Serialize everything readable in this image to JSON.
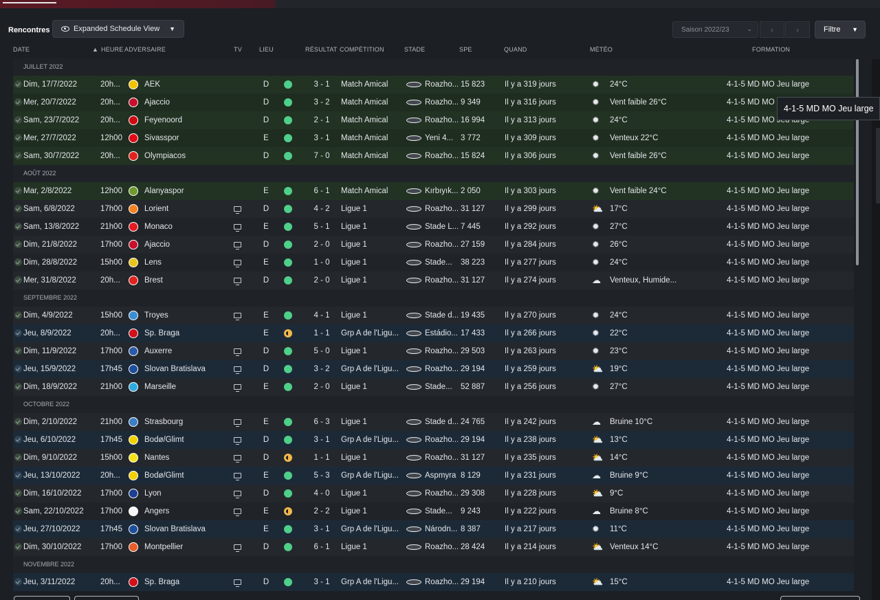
{
  "page_title": "Rencontres",
  "view_button": "Expanded Schedule View",
  "season": "Saison 2022/23",
  "filter_label": "Filtre",
  "tooltip": "4-1-5 MD MO Jeu large",
  "headers": {
    "date": "DATE",
    "heure": "HEURE",
    "adversaire": "ADVERSAIRE",
    "tv": "TV",
    "lieu": "LIEU",
    "resultat": "RÉSULTAT",
    "competition": "COMPÉTITION",
    "stade": "STADE",
    "spe": "SPE",
    "quand": "QUAND",
    "meteo": "MÉTÉO",
    "formation": "FORMATION"
  },
  "sections": [
    {
      "label": "JUILLET 2022",
      "rows": [
        {
          "date": "Dim, 17/7/2022",
          "time": "20h...",
          "badge": "#f2c200",
          "opp": "AEK",
          "tv": false,
          "lieu": "D",
          "outcome": "win",
          "res": "3 - 1",
          "comp": "Match Amical",
          "stade": "Roazho...",
          "spe": "15 823",
          "when": "Il y a 319 jours",
          "wicon": "sun",
          "weather": "24°C",
          "form": "4-1-5 MD MO Jeu large",
          "style": "green"
        },
        {
          "date": "Mer, 20/7/2022",
          "time": "20h...",
          "badge": "#c8102e",
          "opp": "Ajaccio",
          "tv": false,
          "lieu": "D",
          "outcome": "win",
          "res": "3 - 2",
          "comp": "Match Amical",
          "stade": "Roazho...",
          "spe": "9 349",
          "when": "Il y a 316 jours",
          "wicon": "sun",
          "weather": "Vent faible 26°C",
          "form": "4-1-5 MD MO Jeu large",
          "style": "green"
        },
        {
          "date": "Sam, 23/7/2022",
          "time": "20h...",
          "badge": "#d10a11",
          "opp": "Feyenoord",
          "tv": false,
          "lieu": "D",
          "outcome": "win",
          "res": "2 - 1",
          "comp": "Match Amical",
          "stade": "Roazho...",
          "spe": "16 994",
          "when": "Il y a 313 jours",
          "wicon": "sun",
          "weather": "24°C",
          "form": "4-1-5 MD MO Jeu large",
          "style": "green"
        },
        {
          "date": "Mer, 27/7/2022",
          "time": "12h00",
          "badge": "#e30a17",
          "opp": "Sivasspor",
          "tv": false,
          "lieu": "E",
          "outcome": "win",
          "res": "3 - 1",
          "comp": "Match Amical",
          "stade": "Yeni 4...",
          "spe": "3 772",
          "when": "Il y a 309 jours",
          "wicon": "sun",
          "weather": "Venteux 22°C",
          "form": "4-1-5 MD MO Jeu large",
          "style": "green"
        },
        {
          "date": "Sam, 30/7/2022",
          "time": "20h...",
          "badge": "#e2211c",
          "opp": "Olympiacos",
          "tv": false,
          "lieu": "D",
          "outcome": "win",
          "res": "7 - 0",
          "comp": "Match Amical",
          "stade": "Roazho...",
          "spe": "15 824",
          "when": "Il y a 306 jours",
          "wicon": "sun",
          "weather": "Vent faible 26°C",
          "form": "4-1-5 MD MO Jeu large",
          "style": "green"
        }
      ]
    },
    {
      "label": "AOÛT 2022",
      "rows": [
        {
          "date": "Mar, 2/8/2022",
          "time": "12h00",
          "badge": "#6f9a2c",
          "opp": "Alanyaspor",
          "tv": false,
          "lieu": "E",
          "outcome": "win",
          "res": "6 - 1",
          "comp": "Match Amical",
          "stade": "Kırbıyık...",
          "spe": "2 050",
          "when": "Il y a 303 jours",
          "wicon": "sun",
          "weather": "Vent faible 24°C",
          "form": "4-1-5 MD MO Jeu large",
          "style": "green"
        },
        {
          "date": "Sam, 6/8/2022",
          "time": "17h00",
          "badge": "#f58220",
          "opp": "Lorient",
          "tv": true,
          "lieu": "D",
          "outcome": "win",
          "res": "4 - 2",
          "comp": "Ligue 1",
          "stade": "Roazho...",
          "spe": "31 127",
          "when": "Il y a 299 jours",
          "wicon": "cloudsun",
          "weather": "17°C",
          "form": "4-1-5 MD MO Jeu large",
          "style": "dark"
        },
        {
          "date": "Sam, 13/8/2022",
          "time": "21h00",
          "badge": "#e51b22",
          "opp": "Monaco",
          "tv": true,
          "lieu": "E",
          "outcome": "win",
          "res": "5 - 1",
          "comp": "Ligue 1",
          "stade": "Stade L...",
          "spe": "7 445",
          "when": "Il y a 292 jours",
          "wicon": "sun",
          "weather": "27°C",
          "form": "4-1-5 MD MO Jeu large",
          "style": "dark alt"
        },
        {
          "date": "Dim, 21/8/2022",
          "time": "17h00",
          "badge": "#c8102e",
          "opp": "Ajaccio",
          "tv": true,
          "lieu": "D",
          "outcome": "win",
          "res": "2 - 0",
          "comp": "Ligue 1",
          "stade": "Roazho...",
          "spe": "27 159",
          "when": "Il y a 284 jours",
          "wicon": "sun",
          "weather": "26°C",
          "form": "4-1-5 MD MO Jeu large",
          "style": "dark"
        },
        {
          "date": "Dim, 28/8/2022",
          "time": "15h00",
          "badge": "#e8c31b",
          "opp": "Lens",
          "tv": true,
          "lieu": "E",
          "outcome": "win",
          "res": "1 - 0",
          "comp": "Ligue 1",
          "stade": "Stade...",
          "spe": "38 223",
          "when": "Il y a 277 jours",
          "wicon": "sun",
          "weather": "24°C",
          "form": "4-1-5 MD MO Jeu large",
          "style": "dark alt"
        },
        {
          "date": "Mer, 31/8/2022",
          "time": "20h...",
          "badge": "#e0241e",
          "opp": "Brest",
          "tv": true,
          "lieu": "D",
          "outcome": "win",
          "res": "2 - 0",
          "comp": "Ligue 1",
          "stade": "Roazho...",
          "spe": "31 127",
          "when": "Il y a 274 jours",
          "wicon": "cloud",
          "weather": "Venteux, Humide...",
          "form": "4-1-5 MD MO Jeu large",
          "style": "dark"
        }
      ]
    },
    {
      "label": "SEPTEMBRE 2022",
      "rows": [
        {
          "date": "Dim, 4/9/2022",
          "time": "15h00",
          "badge": "#3a8fd4",
          "opp": "Troyes",
          "tv": true,
          "lieu": "E",
          "outcome": "win",
          "res": "4 - 1",
          "comp": "Ligue 1",
          "stade": "Stade d...",
          "spe": "19 435",
          "when": "Il y a 270 jours",
          "wicon": "sun",
          "weather": "24°C",
          "form": "4-1-5 MD MO Jeu large",
          "style": "dark"
        },
        {
          "date": "Jeu, 8/9/2022",
          "time": "20h...",
          "badge": "#d1101a",
          "opp": "Sp. Braga",
          "tv": false,
          "lieu": "E",
          "outcome": "draw",
          "res": "1 - 1",
          "comp": "Grp A de l'Ligu...",
          "stade": "Estádio...",
          "spe": "17 433",
          "when": "Il y a 266 jours",
          "wicon": "sun",
          "weather": "22°C",
          "form": "4-1-5 MD MO Jeu large",
          "style": "blue"
        },
        {
          "date": "Dim, 11/9/2022",
          "time": "17h00",
          "badge": "#2a5cab",
          "opp": "Auxerre",
          "tv": true,
          "lieu": "D",
          "outcome": "win",
          "res": "5 - 0",
          "comp": "Ligue 1",
          "stade": "Roazho...",
          "spe": "29 503",
          "when": "Il y a 263 jours",
          "wicon": "sun",
          "weather": "23°C",
          "form": "4-1-5 MD MO Jeu large",
          "style": "dark"
        },
        {
          "date": "Jeu, 15/9/2022",
          "time": "17h45",
          "badge": "#1d4f9c",
          "opp": "Slovan Bratislava",
          "tv": true,
          "lieu": "D",
          "outcome": "win",
          "res": "3 - 2",
          "comp": "Grp A de l'Ligu...",
          "stade": "Roazho...",
          "spe": "29 194",
          "when": "Il y a 259 jours",
          "wicon": "cloudsun",
          "weather": "19°C",
          "form": "4-1-5 MD MO Jeu large",
          "style": "blue"
        },
        {
          "date": "Dim, 18/9/2022",
          "time": "21h00",
          "badge": "#2fa9e0",
          "opp": "Marseille",
          "tv": true,
          "lieu": "E",
          "outcome": "win",
          "res": "2 - 0",
          "comp": "Ligue 1",
          "stade": "Stade...",
          "spe": "52 887",
          "when": "Il y a 256 jours",
          "wicon": "sun",
          "weather": "27°C",
          "form": "4-1-5 MD MO Jeu large",
          "style": "dark"
        }
      ]
    },
    {
      "label": "OCTOBRE 2022",
      "rows": [
        {
          "date": "Dim, 2/10/2022",
          "time": "21h00",
          "badge": "#3b7fc4",
          "opp": "Strasbourg",
          "tv": true,
          "lieu": "E",
          "outcome": "win",
          "res": "6 - 3",
          "comp": "Ligue 1",
          "stade": "Stade d...",
          "spe": "24 765",
          "when": "Il y a 242 jours",
          "wicon": "cloud",
          "weather": "Bruine 10°C",
          "form": "4-1-5 MD MO Jeu large",
          "style": "dark"
        },
        {
          "date": "Jeu, 6/10/2022",
          "time": "17h45",
          "badge": "#f2d100",
          "opp": "Bodø/Glimt",
          "tv": true,
          "lieu": "D",
          "outcome": "win",
          "res": "3 - 1",
          "comp": "Grp A de l'Ligu...",
          "stade": "Roazho...",
          "spe": "29 194",
          "when": "Il y a 238 jours",
          "wicon": "cloudsun",
          "weather": "13°C",
          "form": "4-1-5 MD MO Jeu large",
          "style": "blue"
        },
        {
          "date": "Dim, 9/10/2022",
          "time": "15h00",
          "badge": "#f5e21a",
          "opp": "Nantes",
          "tv": true,
          "lieu": "D",
          "outcome": "draw",
          "res": "1 - 1",
          "comp": "Ligue 1",
          "stade": "Roazho...",
          "spe": "31 127",
          "when": "Il y a 235 jours",
          "wicon": "cloudsun",
          "weather": "14°C",
          "form": "4-1-5 MD MO Jeu large",
          "style": "dark"
        },
        {
          "date": "Jeu, 13/10/2022",
          "time": "20h...",
          "badge": "#f2d100",
          "opp": "Bodø/Glimt",
          "tv": true,
          "lieu": "E",
          "outcome": "win",
          "res": "5 - 3",
          "comp": "Grp A de l'Ligu...",
          "stade": "Aspmyra",
          "spe": "8 129",
          "when": "Il y a 231 jours",
          "wicon": "cloud",
          "weather": "Bruine 9°C",
          "form": "4-1-5 MD MO Jeu large",
          "style": "blue"
        },
        {
          "date": "Dim, 16/10/2022",
          "time": "17h00",
          "badge": "#1d3f94",
          "opp": "Lyon",
          "tv": true,
          "lieu": "D",
          "outcome": "win",
          "res": "4 - 0",
          "comp": "Ligue 1",
          "stade": "Roazho...",
          "spe": "29 308",
          "when": "Il y a 228 jours",
          "wicon": "cloudsun",
          "weather": "9°C",
          "form": "4-1-5 MD MO Jeu large",
          "style": "dark"
        },
        {
          "date": "Sam, 22/10/2022",
          "time": "17h00",
          "badge": "#f5f5f5",
          "opp": "Angers",
          "tv": true,
          "lieu": "E",
          "outcome": "draw",
          "res": "2 - 2",
          "comp": "Ligue 1",
          "stade": "Stade...",
          "spe": "9 243",
          "when": "Il y a 222 jours",
          "wicon": "cloud",
          "weather": "Bruine 8°C",
          "form": "4-1-5 MD MO Jeu large",
          "style": "dark alt"
        },
        {
          "date": "Jeu, 27/10/2022",
          "time": "17h45",
          "badge": "#1d4f9c",
          "opp": "Slovan Bratislava",
          "tv": false,
          "lieu": "E",
          "outcome": "win",
          "res": "3 - 1",
          "comp": "Grp A de l'Ligu...",
          "stade": "Národn...",
          "spe": "8 387",
          "when": "Il y a 217 jours",
          "wicon": "sun",
          "weather": "11°C",
          "form": "4-1-5 MD MO Jeu large",
          "style": "blue"
        },
        {
          "date": "Dim, 30/10/2022",
          "time": "17h00",
          "badge": "#e85d2a",
          "opp": "Montpellier",
          "tv": true,
          "lieu": "D",
          "outcome": "win",
          "res": "6 - 1",
          "comp": "Ligue 1",
          "stade": "Roazho...",
          "spe": "28 424",
          "when": "Il y a 214 jours",
          "wicon": "cloudsun",
          "weather": "Venteux 14°C",
          "form": "4-1-5 MD MO Jeu large",
          "style": "dark"
        }
      ]
    },
    {
      "label": "NOVEMBRE 2022",
      "rows": [
        {
          "date": "Jeu, 3/11/2022",
          "time": "20h...",
          "badge": "#d1101a",
          "opp": "Sp. Braga",
          "tv": true,
          "lieu": "D",
          "outcome": "win",
          "res": "3 - 1",
          "comp": "Grp A de l'Ligu...",
          "stade": "Roazho...",
          "spe": "29 194",
          "when": "Il y a 210 jours",
          "wicon": "cloudsun",
          "weather": "15°C",
          "form": "4-1-5 MD MO Jeu large",
          "style": "blue"
        }
      ]
    }
  ]
}
